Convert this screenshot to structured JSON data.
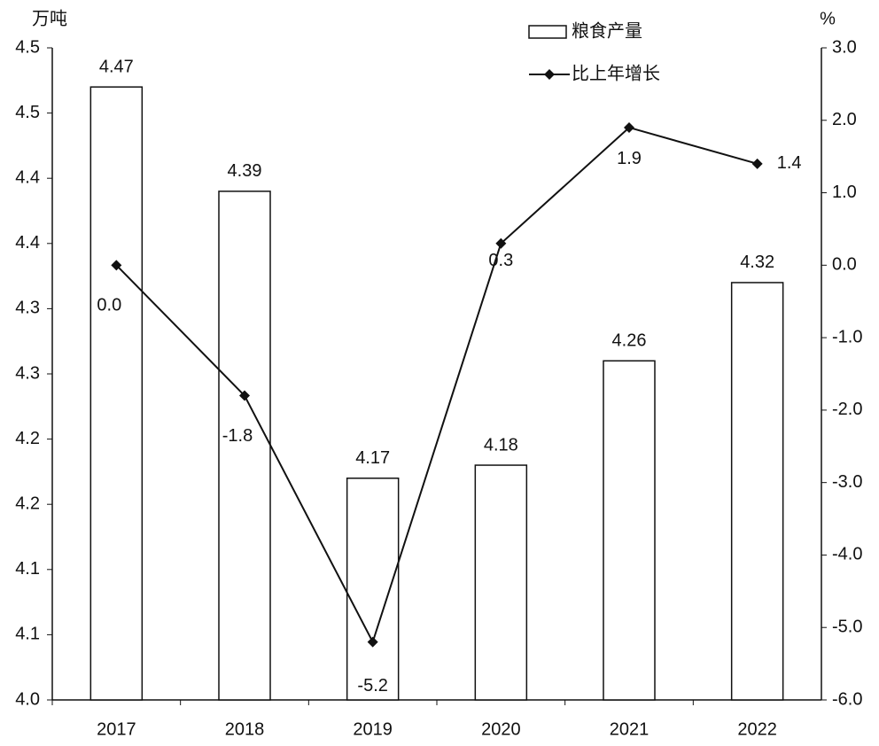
{
  "chart_data": {
    "type": "bar-line",
    "y_label": "万吨",
    "y2_label": "%",
    "categories": [
      "2017",
      "2018",
      "2019",
      "2020",
      "2021",
      "2022"
    ],
    "series": [
      {
        "name": "粮食产量",
        "type": "bar",
        "color": "#ffffff",
        "values": [
          4.47,
          4.39,
          4.17,
          4.18,
          4.26,
          4.32
        ],
        "value_labels": [
          "4.47",
          "4.39",
          "4.17",
          "4.18",
          "4.26",
          "4.32"
        ]
      },
      {
        "name": "比上年增长",
        "type": "line",
        "axis": "y2",
        "color": "#111111",
        "values": [
          0.0,
          -1.8,
          -5.2,
          0.3,
          1.9,
          1.4
        ],
        "value_labels": [
          "0.0",
          "-1.8",
          "-5.2",
          "0.3",
          "1.9",
          "1.4"
        ]
      }
    ],
    "ylim": [
      4.0,
      4.5
    ],
    "yticks": [
      {
        "value": 4.0,
        "label": "4.0"
      },
      {
        "value": 4.05,
        "label": "4.1"
      },
      {
        "value": 4.1,
        "label": "4.1"
      },
      {
        "value": 4.15,
        "label": "4.2"
      },
      {
        "value": 4.2,
        "label": "4.2"
      },
      {
        "value": 4.25,
        "label": "4.3"
      },
      {
        "value": 4.3,
        "label": "4.3"
      },
      {
        "value": 4.35,
        "label": "4.4"
      },
      {
        "value": 4.4,
        "label": "4.4"
      },
      {
        "value": 4.45,
        "label": "4.5"
      },
      {
        "value": 4.5,
        "label": "4.5"
      }
    ],
    "y2lim": [
      -6,
      3
    ],
    "y2ticks": [
      {
        "value": -6,
        "label": "-6.0"
      },
      {
        "value": -5,
        "label": "-5.0"
      },
      {
        "value": -4,
        "label": "-4.0"
      },
      {
        "value": -3,
        "label": "-3.0"
      },
      {
        "value": -2,
        "label": "-2.0"
      },
      {
        "value": -1,
        "label": "-1.0"
      },
      {
        "value": 0,
        "label": "0.0"
      },
      {
        "value": 1,
        "label": "1.0"
      },
      {
        "value": 2,
        "label": "2.0"
      },
      {
        "value": 3,
        "label": "3.0"
      }
    ],
    "legend_position": "top"
  }
}
